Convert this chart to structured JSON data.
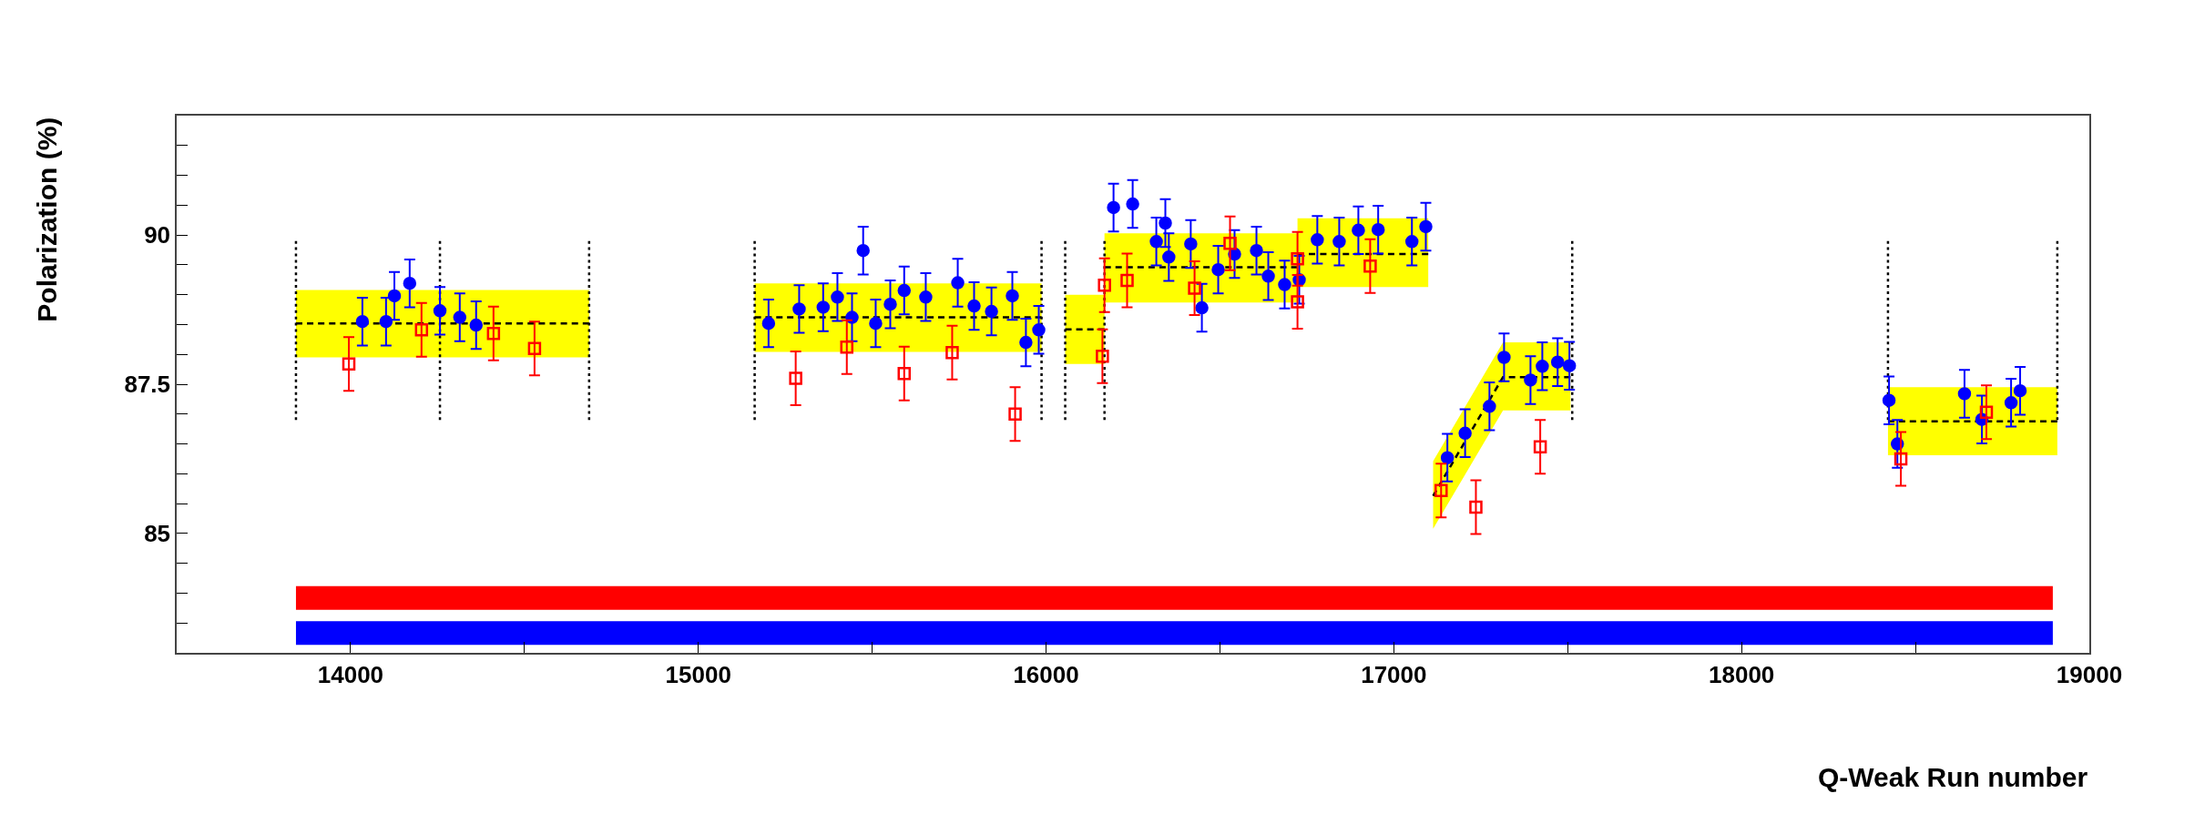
{
  "chart_data": {
    "type": "scatter",
    "xlabel": "Q-Weak Run number",
    "ylabel": "Polarization (%)",
    "xlim": [
      13500,
      19000
    ],
    "xticks": [
      14000,
      {
        "value": 14500,
        "label": null
      },
      15000,
      {
        "value": 15500,
        "label": null
      },
      16000,
      {
        "value": 16500,
        "label": null
      },
      17000,
      {
        "value": 17500,
        "label": null
      },
      18000,
      {
        "value": 18500,
        "label": null
      },
      19000
    ],
    "ylim": [
      83,
      92
    ],
    "yticks": [
      {
        "value": 83.5,
        "label": null
      },
      {
        "value": 84,
        "label": null
      },
      {
        "value": 84.5,
        "label": null
      },
      85,
      {
        "value": 85.5,
        "label": null
      },
      {
        "value": 86,
        "label": null
      },
      {
        "value": 86.5,
        "label": null
      },
      {
        "value": 87,
        "label": null
      },
      87.5,
      {
        "value": 88,
        "label": null
      },
      {
        "value": 88.5,
        "label": null
      },
      {
        "value": 89,
        "label": null
      },
      {
        "value": 89.5,
        "label": null
      },
      90,
      {
        "value": 90.5,
        "label": null
      },
      {
        "value": 91,
        "label": null
      },
      {
        "value": 91.5,
        "label": null
      }
    ],
    "series": [
      {
        "type": "line",
        "color": "#000000",
        "colors": [
          "#ffff00",
          "#ffff00"
        ],
        "line_style": "dashed",
        "x": [
          13843,
          14686
        ],
        "values": [
          88.52,
          88.52
        ],
        "lower": [
          87.95,
          87.95
        ],
        "upper": [
          89.08,
          89.08
        ]
      },
      {
        "type": "line",
        "color": "#000000",
        "colors": [
          "#ffff00",
          "#ffff00"
        ],
        "line_style": "dashed",
        "x": [
          15162,
          15987
        ],
        "values": [
          88.62,
          88.62
        ],
        "lower": [
          88.04,
          88.04
        ],
        "upper": [
          89.19,
          89.19
        ]
      },
      {
        "type": "line",
        "color": "#000000",
        "colors": [
          "#ffff00",
          "#ffff00"
        ],
        "line_style": "dashed",
        "x": [
          16055,
          16168
        ],
        "values": [
          88.42,
          88.42
        ],
        "lower": [
          87.84,
          87.84
        ],
        "upper": [
          89.0,
          89.0
        ]
      },
      {
        "type": "line",
        "color": "#000000",
        "colors": [
          "#ffff00",
          "#ffff00"
        ],
        "line_style": "dashed",
        "x": [
          16168,
          16723
        ],
        "values": [
          89.46,
          89.46
        ],
        "lower": [
          88.87,
          88.87
        ],
        "upper": [
          90.03,
          90.03
        ]
      },
      {
        "type": "line",
        "color": "#000000",
        "colors": [
          "#ffff00",
          "#ffff00"
        ],
        "line_style": "dashed",
        "x": [
          16723,
          17099
        ],
        "values": [
          89.68,
          89.68
        ],
        "lower": [
          89.13,
          89.13
        ],
        "upper": [
          90.28,
          90.28
        ]
      },
      {
        "type": "line",
        "color": "#000000",
        "colors": [
          "#ffff00",
          "#ffff00",
          "#ffff00"
        ],
        "line_style": "dashed",
        "x": [
          17113,
          17314,
          17508
        ],
        "values": [
          85.63,
          87.62,
          87.62
        ],
        "lower": [
          85.08,
          87.06,
          87.06
        ],
        "upper": [
          86.21,
          88.2,
          88.2
        ]
      },
      {
        "type": "line",
        "color": "#000000",
        "colors": [
          "#ffff00",
          "#ffff00"
        ],
        "line_style": "dashed",
        "x": [
          18421,
          18908
        ],
        "values": [
          86.88,
          86.88
        ],
        "lower": [
          86.31,
          86.31
        ],
        "upper": [
          87.45,
          87.45
        ]
      },
      {
        "type": "line",
        "color": "#000000",
        "line_style": "dotted",
        "x": [
          13843,
          13843
        ],
        "values": [
          86.9,
          89.9
        ]
      },
      {
        "type": "line",
        "color": "#000000",
        "line_style": "dotted",
        "x": [
          14257,
          14257
        ],
        "values": [
          86.9,
          89.9
        ]
      },
      {
        "type": "line",
        "color": "#000000",
        "line_style": "dotted",
        "x": [
          14686,
          14686
        ],
        "values": [
          86.9,
          89.9
        ]
      },
      {
        "type": "line",
        "color": "#000000",
        "line_style": "dotted",
        "x": [
          15162,
          15162
        ],
        "values": [
          86.9,
          89.9
        ]
      },
      {
        "type": "line",
        "color": "#000000",
        "line_style": "dotted",
        "x": [
          15987,
          15987
        ],
        "values": [
          86.9,
          89.9
        ]
      },
      {
        "type": "line",
        "color": "#000000",
        "line_style": "dotted",
        "x": [
          16055,
          16055
        ],
        "values": [
          86.9,
          89.9
        ]
      },
      {
        "type": "line",
        "color": "#000000",
        "line_style": "dotted",
        "x": [
          16168,
          16168
        ],
        "values": [
          86.9,
          89.9
        ]
      },
      {
        "type": "line",
        "color": "#000000",
        "line_style": "dotted",
        "x": [
          17513,
          17513
        ],
        "values": [
          86.9,
          89.9
        ]
      },
      {
        "type": "line",
        "color": "#000000",
        "line_style": "dotted",
        "x": [
          18421,
          18421
        ],
        "values": [
          86.9,
          89.9
        ]
      },
      {
        "type": "line",
        "color": "#000000",
        "line_style": "dotted",
        "x": [
          18908,
          18908
        ],
        "values": [
          86.9,
          89.9
        ]
      },
      {
        "type": "line",
        "color": "#ff0000",
        "line_style": "solid",
        "x": [
          13843,
          18895
        ],
        "values": [
          83.92,
          83.92
        ]
      },
      {
        "type": "line",
        "color": "#0000ff",
        "line_style": "solid",
        "x": [
          13843,
          18895
        ],
        "values": [
          83.33,
          83.33
        ]
      },
      {
        "color": "#0000ff",
        "marker": "circle",
        "x": [
          14034,
          14102,
          14126,
          14170,
          14257,
          14314,
          14361,
          15202,
          15290,
          15359,
          15400,
          15442,
          15474,
          15510,
          15552,
          15592,
          15654,
          15746,
          15793,
          15843,
          15903,
          15942,
          15979,
          16194,
          16249,
          16317,
          16343,
          16353,
          16416,
          16448,
          16495,
          16542,
          16605,
          16639,
          16686,
          16728,
          16780,
          16843,
          16898,
          16955,
          17052,
          17092,
          17154,
          17205,
          17275,
          17317,
          17393,
          17427,
          17471,
          17505,
          18424,
          18448,
          18641,
          18691,
          18775,
          18801
        ],
        "values": [
          88.55,
          88.55,
          88.98,
          89.19,
          88.73,
          88.62,
          88.49,
          88.52,
          88.76,
          88.79,
          88.96,
          88.62,
          89.74,
          88.52,
          88.84,
          89.07,
          88.96,
          89.2,
          88.81,
          88.72,
          88.98,
          88.2,
          88.41,
          90.46,
          90.52,
          89.89,
          90.2,
          89.63,
          89.85,
          88.78,
          89.42,
          89.68,
          89.74,
          89.31,
          89.17,
          89.25,
          89.92,
          89.89,
          90.08,
          90.09,
          89.89,
          90.14,
          86.27,
          86.68,
          87.13,
          87.95,
          87.57,
          87.8,
          87.87,
          87.81,
          87.23,
          86.5,
          87.34,
          86.91,
          87.19,
          87.39
        ],
        "errors": [
          0.4,
          0.4,
          0.4,
          0.4,
          0.4,
          0.4,
          0.4,
          0.4,
          0.4,
          0.4,
          0.4,
          0.4,
          0.4,
          0.4,
          0.4,
          0.4,
          0.4,
          0.4,
          0.4,
          0.4,
          0.4,
          0.4,
          0.4,
          0.4,
          0.4,
          0.4,
          0.4,
          0.4,
          0.4,
          0.4,
          0.4,
          0.4,
          0.4,
          0.4,
          0.4,
          0.4,
          0.4,
          0.4,
          0.4,
          0.4,
          0.4,
          0.4,
          0.4,
          0.4,
          0.4,
          0.4,
          0.4,
          0.4,
          0.4,
          0.4,
          0.4,
          0.4,
          0.4,
          0.4,
          0.4,
          0.4
        ]
      },
      {
        "color": "#ff0000",
        "marker": "square",
        "x": [
          13995,
          14204,
          14411,
          14529,
          15280,
          15427,
          15592,
          15730,
          15911,
          16162,
          16168,
          16233,
          16427,
          16529,
          16723,
          16723,
          16932,
          17136,
          17236,
          17421,
          18458,
          18704
        ],
        "values": [
          87.84,
          88.41,
          88.35,
          88.1,
          87.6,
          88.12,
          87.68,
          88.03,
          87.0,
          87.97,
          89.16,
          89.24,
          89.11,
          89.86,
          89.6,
          88.88,
          89.48,
          85.72,
          85.44,
          86.45,
          86.25,
          87.03
        ],
        "errors": [
          0.45,
          0.45,
          0.45,
          0.45,
          0.45,
          0.45,
          0.45,
          0.45,
          0.45,
          0.45,
          0.45,
          0.45,
          0.45,
          0.45,
          0.45,
          0.45,
          0.45,
          0.45,
          0.45,
          0.45,
          0.45,
          0.45
        ]
      }
    ]
  }
}
